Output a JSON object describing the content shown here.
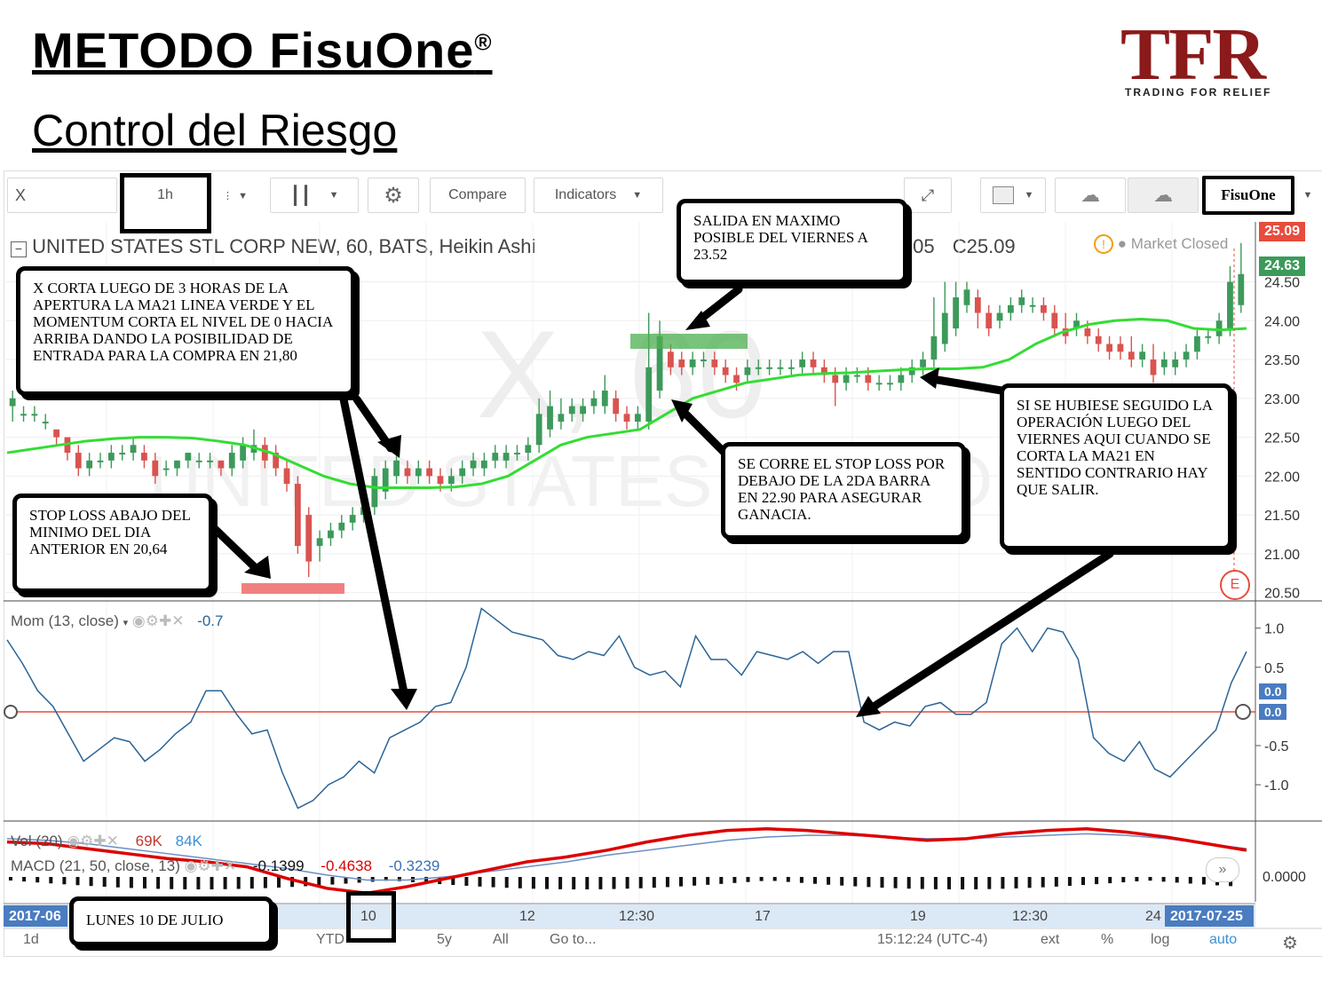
{
  "slide": {
    "title": "METODO FisuOne",
    "title_mark": "®",
    "subtitle": "Control del Riesgo"
  },
  "logo": {
    "mark": "TFR",
    "tagline": "TRADING FOR RELIEF",
    "color": "#8b1a1a"
  },
  "toolbar": {
    "symbol": "X",
    "interval": "1h",
    "compare_label": "Compare",
    "indicators_label": "Indicators",
    "template_label": "FisuOne",
    "icons": [
      "candles-icon",
      "gear-icon",
      "alarm-icon",
      "sun-icon",
      "undo-icon",
      "redo-icon",
      "fullscreen-icon",
      "rectangle-icon",
      "cloud-download-icon",
      "cloud-upload-icon"
    ]
  },
  "chart": {
    "header": "UNITED STATES STL CORP NEW, 60, BATS, Heikin Ashi",
    "ohlc_tail": ".05",
    "close_label": "C25.09",
    "status": "Market Closed",
    "watermark_symbol": "X, 60",
    "watermark_name": "UNITED STATES STL CORP",
    "last_price_red": "25.09",
    "last_price_green": "24.63",
    "earnings_marker": "E",
    "colors": {
      "up": "#3c9a5a",
      "down": "#d9534f",
      "ma21": "#33dd33",
      "momentum": "#2a6496",
      "zero_line": "#e74c3c",
      "macd": "#dd0000",
      "signal": "#6b8ec4"
    }
  },
  "chart_data": {
    "type": "candlestick",
    "price_axis": [
      "24.50",
      "24.00",
      "23.50",
      "23.00",
      "22.50",
      "22.00",
      "21.50",
      "21.00",
      "20.50"
    ],
    "price_range": [
      20.45,
      25.1
    ],
    "candles": [
      [
        22.9,
        23.0,
        23.1,
        22.7
      ],
      [
        22.8,
        22.8,
        22.9,
        22.7
      ],
      [
        22.8,
        22.8,
        22.9,
        22.7
      ],
      [
        22.7,
        22.7,
        22.8,
        22.6
      ],
      [
        22.6,
        22.5,
        22.6,
        22.4
      ],
      [
        22.5,
        22.3,
        22.5,
        22.2
      ],
      [
        22.3,
        22.1,
        22.4,
        22.0
      ],
      [
        22.1,
        22.2,
        22.3,
        22.0
      ],
      [
        22.2,
        22.2,
        22.3,
        22.1
      ],
      [
        22.2,
        22.3,
        22.4,
        22.1
      ],
      [
        22.3,
        22.3,
        22.4,
        22.2
      ],
      [
        22.3,
        22.4,
        22.5,
        22.2
      ],
      [
        22.3,
        22.2,
        22.4,
        22.1
      ],
      [
        22.2,
        22.0,
        22.3,
        21.9
      ],
      [
        22.1,
        22.1,
        22.2,
        22.0
      ],
      [
        22.1,
        22.2,
        22.2,
        22.0
      ],
      [
        22.2,
        22.3,
        22.3,
        22.1
      ],
      [
        22.2,
        22.2,
        22.3,
        22.1
      ],
      [
        22.2,
        22.2,
        22.3,
        22.1
      ],
      [
        22.2,
        22.1,
        22.2,
        22.0
      ],
      [
        22.1,
        22.3,
        22.4,
        22.0
      ],
      [
        22.2,
        22.4,
        22.5,
        22.1
      ],
      [
        22.3,
        22.4,
        22.6,
        22.2
      ],
      [
        22.4,
        22.2,
        22.5,
        22.1
      ],
      [
        22.3,
        22.1,
        22.4,
        22.0
      ],
      [
        22.1,
        21.9,
        22.2,
        21.8
      ],
      [
        21.9,
        21.1,
        22.0,
        21.0
      ],
      [
        21.5,
        20.9,
        21.6,
        20.7
      ],
      [
        21.1,
        21.2,
        21.3,
        20.9
      ],
      [
        21.2,
        21.3,
        21.4,
        21.1
      ],
      [
        21.3,
        21.4,
        21.5,
        21.2
      ],
      [
        21.4,
        21.5,
        21.6,
        21.3
      ],
      [
        21.5,
        21.6,
        21.7,
        21.4
      ],
      [
        21.6,
        22.0,
        22.1,
        21.5
      ],
      [
        21.8,
        22.1,
        22.2,
        21.7
      ],
      [
        22.0,
        22.2,
        22.3,
        21.9
      ],
      [
        22.1,
        22.0,
        22.2,
        21.9
      ],
      [
        22.0,
        22.1,
        22.2,
        21.9
      ],
      [
        22.1,
        22.0,
        22.2,
        21.9
      ],
      [
        22.0,
        21.9,
        22.1,
        21.8
      ],
      [
        21.9,
        22.0,
        22.1,
        21.8
      ],
      [
        22.0,
        22.1,
        22.2,
        21.9
      ],
      [
        22.1,
        22.2,
        22.3,
        22.0
      ],
      [
        22.1,
        22.2,
        22.3,
        22.0
      ],
      [
        22.2,
        22.3,
        22.4,
        22.1
      ],
      [
        22.2,
        22.3,
        22.4,
        22.1
      ],
      [
        22.3,
        22.3,
        22.4,
        22.2
      ],
      [
        22.3,
        22.4,
        22.5,
        22.2
      ],
      [
        22.4,
        22.8,
        23.0,
        22.3
      ],
      [
        22.6,
        22.9,
        23.1,
        22.5
      ],
      [
        22.7,
        22.8,
        23.0,
        22.6
      ],
      [
        22.8,
        22.9,
        23.0,
        22.7
      ],
      [
        22.8,
        22.9,
        23.0,
        22.7
      ],
      [
        22.9,
        23.0,
        23.1,
        22.8
      ],
      [
        22.9,
        23.1,
        23.3,
        22.8
      ],
      [
        23.0,
        22.8,
        23.1,
        22.7
      ],
      [
        22.8,
        22.7,
        22.9,
        22.6
      ],
      [
        22.7,
        22.8,
        22.9,
        22.6
      ],
      [
        22.7,
        23.4,
        24.1,
        22.6
      ],
      [
        23.1,
        23.8,
        24.0,
        23.0
      ],
      [
        23.6,
        23.4,
        23.7,
        23.3
      ],
      [
        23.5,
        23.4,
        23.6,
        23.3
      ],
      [
        23.4,
        23.5,
        23.6,
        23.3
      ],
      [
        23.5,
        23.5,
        23.6,
        23.4
      ],
      [
        23.5,
        23.4,
        23.6,
        23.3
      ],
      [
        23.4,
        23.3,
        23.5,
        23.2
      ],
      [
        23.3,
        23.2,
        23.4,
        23.1
      ],
      [
        23.3,
        23.4,
        23.5,
        23.2
      ],
      [
        23.4,
        23.4,
        23.5,
        23.3
      ],
      [
        23.4,
        23.4,
        23.5,
        23.3
      ],
      [
        23.4,
        23.4,
        23.5,
        23.3
      ],
      [
        23.4,
        23.4,
        23.5,
        23.3
      ],
      [
        23.4,
        23.5,
        23.6,
        23.3
      ],
      [
        23.5,
        23.4,
        23.6,
        23.3
      ],
      [
        23.4,
        23.3,
        23.5,
        23.2
      ],
      [
        23.3,
        23.2,
        23.4,
        22.9
      ],
      [
        23.2,
        23.3,
        23.4,
        23.1
      ],
      [
        23.3,
        23.3,
        23.4,
        23.2
      ],
      [
        23.3,
        23.2,
        23.4,
        23.1
      ],
      [
        23.2,
        23.2,
        23.3,
        23.1
      ],
      [
        23.2,
        23.2,
        23.3,
        23.1
      ],
      [
        23.2,
        23.3,
        23.4,
        23.1
      ],
      [
        23.3,
        23.4,
        23.5,
        23.2
      ],
      [
        23.4,
        23.5,
        23.6,
        23.3
      ],
      [
        23.5,
        23.8,
        24.3,
        23.4
      ],
      [
        23.7,
        24.1,
        24.5,
        23.6
      ],
      [
        23.9,
        24.3,
        24.5,
        23.8
      ],
      [
        24.2,
        24.4,
        24.5,
        24.1
      ],
      [
        24.3,
        24.1,
        24.4,
        23.9
      ],
      [
        24.1,
        23.9,
        24.2,
        23.8
      ],
      [
        24.0,
        24.1,
        24.2,
        23.9
      ],
      [
        24.1,
        24.2,
        24.3,
        24.0
      ],
      [
        24.2,
        24.3,
        24.4,
        24.1
      ],
      [
        24.2,
        24.2,
        24.3,
        24.1
      ],
      [
        24.2,
        24.1,
        24.3,
        24.0
      ],
      [
        24.1,
        23.9,
        24.2,
        23.8
      ],
      [
        23.9,
        23.8,
        24.1,
        23.7
      ],
      [
        23.9,
        24.0,
        24.1,
        23.8
      ],
      [
        23.9,
        23.8,
        24.0,
        23.7
      ],
      [
        23.8,
        23.7,
        23.9,
        23.6
      ],
      [
        23.7,
        23.6,
        23.8,
        23.5
      ],
      [
        23.7,
        23.6,
        23.8,
        23.5
      ],
      [
        23.6,
        23.5,
        23.8,
        23.4
      ],
      [
        23.5,
        23.6,
        23.7,
        23.4
      ],
      [
        23.5,
        23.3,
        23.7,
        23.2
      ],
      [
        23.4,
        23.5,
        23.6,
        23.3
      ],
      [
        23.4,
        23.5,
        23.6,
        23.3
      ],
      [
        23.5,
        23.6,
        23.7,
        23.4
      ],
      [
        23.6,
        23.8,
        23.9,
        23.5
      ],
      [
        23.8,
        23.8,
        23.9,
        23.7
      ],
      [
        23.8,
        24.0,
        24.1,
        23.7
      ],
      [
        23.9,
        24.5,
        24.7,
        23.8
      ],
      [
        24.2,
        24.6,
        25.0,
        24.1
      ]
    ],
    "ma21": [
      22.3,
      22.35,
      22.4,
      22.45,
      22.48,
      22.5,
      22.5,
      22.49,
      22.45,
      22.4,
      22.3,
      22.15,
      22.0,
      21.9,
      21.85,
      21.85,
      21.85,
      21.86,
      21.9,
      22.0,
      22.2,
      22.4,
      22.5,
      22.55,
      22.6,
      22.8,
      23.0,
      23.1,
      23.2,
      23.25,
      23.3,
      23.32,
      23.33,
      23.35,
      23.37,
      23.38,
      23.38,
      23.4,
      23.5,
      23.7,
      23.85,
      23.95,
      24.0,
      24.02,
      24.0,
      23.9,
      23.88,
      23.9
    ],
    "stop_loss": 20.64,
    "exit_level": 23.52,
    "momentum": {
      "label": "Mom (13, close)",
      "value": "-0.7",
      "axis": [
        "1.0",
        "0.5",
        "0.0",
        "-0.5",
        "-1.0"
      ],
      "range": [
        -1.35,
        1.2
      ],
      "values": [
        0.85,
        0.55,
        0.2,
        0.0,
        -0.35,
        -0.7,
        -0.55,
        -0.4,
        -0.45,
        -0.7,
        -0.55,
        -0.35,
        -0.2,
        0.2,
        0.2,
        -0.1,
        -0.35,
        -0.3,
        -0.85,
        -1.3,
        -1.2,
        -1.0,
        -0.9,
        -0.7,
        -0.85,
        -0.4,
        -0.3,
        -0.2,
        0.0,
        0.05,
        0.5,
        1.25,
        1.1,
        0.95,
        0.9,
        0.85,
        0.65,
        0.6,
        0.7,
        0.65,
        0.9,
        0.5,
        0.4,
        0.45,
        0.25,
        0.9,
        0.6,
        0.6,
        0.4,
        0.7,
        0.65,
        0.6,
        0.7,
        0.55,
        0.7,
        0.7,
        -0.2,
        -0.3,
        -0.2,
        -0.25,
        0.0,
        0.05,
        -0.1,
        -0.1,
        0.05,
        0.8,
        1.0,
        0.7,
        1.0,
        0.95,
        0.6,
        -0.4,
        -0.6,
        -0.7,
        -0.45,
        -0.8,
        -0.9,
        -0.7,
        -0.5,
        -0.3,
        0.3,
        0.7
      ]
    },
    "volume": {
      "label": "Vol (20)",
      "v1": "69K",
      "v2": "84K"
    },
    "macd": {
      "label": "MACD (21, 50, close, 13)",
      "values": [
        "-0.1399",
        "-0.4638",
        "-0.3239"
      ],
      "axis": "0.0000",
      "macd_line": [
        0.8,
        0.75,
        0.6,
        0.45,
        0.3,
        0.2,
        0.05,
        -0.3,
        -0.6,
        -0.75,
        -0.55,
        -0.3,
        -0.05,
        0.2,
        0.35,
        0.55,
        0.8,
        1.0,
        1.15,
        1.2,
        1.15,
        1.05,
        0.95,
        0.85,
        0.9,
        1.05,
        1.15,
        1.2,
        1.1,
        0.95,
        0.75,
        0.55
      ],
      "signal_line": [
        0.9,
        0.85,
        0.75,
        0.6,
        0.45,
        0.3,
        0.15,
        0.0,
        -0.2,
        -0.35,
        -0.35,
        -0.25,
        -0.1,
        0.05,
        0.2,
        0.4,
        0.55,
        0.7,
        0.85,
        0.95,
        1.0,
        1.0,
        0.95,
        0.9,
        0.9,
        0.95,
        1.0,
        1.05,
        1.0,
        0.9,
        0.75,
        0.6
      ]
    },
    "x_axis": [
      "2017-06",
      "10",
      "12",
      "12:30",
      "17",
      "19",
      "12:30",
      "24",
      "2017-07-25"
    ]
  },
  "annotations": {
    "entry_text": "X CORTA LUEGO DE 3 HORAS DE LA APERTURA LA MA21 LINEA VERDE Y EL MOMENTUM CORTA EL NIVEL DE 0 HACIA ARRIBA DANDO LA POSIBILIDAD DE ENTRADA PARA LA COMPRA EN 21,80",
    "stop_text": "STOP LOSS ABAJO DEL MINIMO DEL DIA ANTERIOR EN 20,64",
    "exit_text": "SALIDA EN MAXIMO POSIBLE DEL VIERNES A 23.52",
    "trail_text": "SE CORRE EL STOP LOSS POR DEBAJO DE LA 2DA BARRA EN 22.90 PARA ASEGURAR GANACIA.",
    "follow_text": "SI SE HUBIESE SEGUIDO LA OPERACIÓN LUEGO DEL VIERNES AQUI CUANDO SE CORTA LA MA21 EN SENTIDO CONTRARIO HAY QUE SALIR.",
    "date_text": "LUNES 10 DE JULIO"
  },
  "bottom_bar": {
    "ranges": [
      "1d",
      "YTD",
      "5y",
      "All"
    ],
    "goto": "Go to...",
    "time": "15:12:24 (UTC-4)",
    "ext": "ext",
    "percent": "%",
    "log": "log",
    "auto": "auto"
  }
}
